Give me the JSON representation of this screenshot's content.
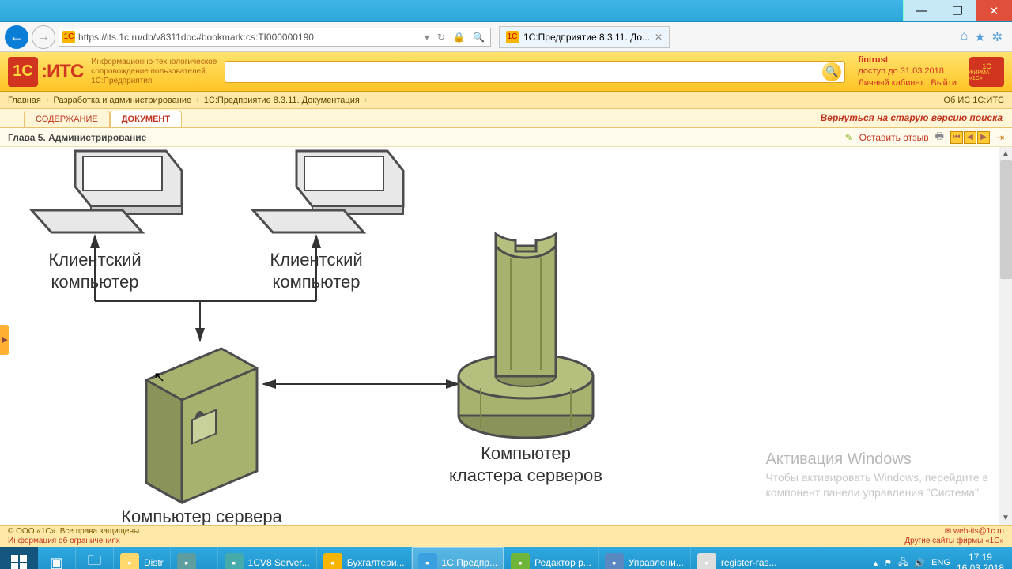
{
  "browser": {
    "url": "https://its.1c.ru/db/v8311doc#bookmark:cs:TI000000190",
    "tab_title": "1С:Предприятие 8.3.11. До...",
    "home_icon": "⌂",
    "star_icon": "★",
    "gear_icon": "✲"
  },
  "site": {
    "logo_main": "1С",
    "logo_sub": "ИТС",
    "tagline1": "Информационно-технологическое",
    "tagline2": "сопровождение пользователей",
    "tagline3": "1С:Предприятия",
    "account_user": "fintrust",
    "account_until": "доступ до 31.03.2018",
    "account_link1": "Личный кабинет",
    "account_link2": "Выйти"
  },
  "breadcrumb": {
    "items": [
      "Главная",
      "Разработка и администрирование",
      "1С:Предприятие 8.3.11. Документация"
    ],
    "right": "Об ИС 1С:ИТС"
  },
  "tabs": {
    "t1": "СОДЕРЖАНИЕ",
    "t2": "ДОКУМЕНТ",
    "backlink": "Вернуться на старую версию поиска"
  },
  "doc": {
    "title": "Глава 5. Администрирование",
    "feedback": "Оставить отзыв"
  },
  "diagram": {
    "client1": "Клиентский",
    "client1b": "компьютер",
    "client2": "Клиентский",
    "client2b": "компьютер",
    "server": "Компьютер сервера",
    "cluster1": "Компьютер",
    "cluster2": "кластера серверов",
    "colors": {
      "pc_fill": "#e8e8e8",
      "pc_stroke": "#4d4d4d",
      "server_fill": "#a6b26d",
      "server_dark": "#7f8a4a",
      "server_stroke": "#4d4d4d",
      "cluster_fill": "#a6b26d",
      "cluster_dark": "#8a945a"
    }
  },
  "watermark": {
    "title": "Активация Windows",
    "line": "Чтобы активировать Windows, перейдите в",
    "line2": "компонент панели управления \"Система\"."
  },
  "footer": {
    "copyright": "© ООО «1С». Все права защищены",
    "restrict": "Информация об ограничениях",
    "email": "web-its@1c.ru",
    "other": "Другие сайты фирмы «1С»"
  },
  "taskbar": {
    "items": [
      {
        "label": "Distr",
        "color": "#ffd76a"
      },
      {
        "label": "",
        "color": "#5f9ea0"
      },
      {
        "label": "1CV8 Server...",
        "color": "#4aa"
      },
      {
        "label": "Бухгалтери...",
        "color": "#f7b500"
      },
      {
        "label": "1С:Предпр...",
        "color": "#3aa0e0"
      },
      {
        "label": "Редактор р...",
        "color": "#6fb53a"
      },
      {
        "label": "Управлени...",
        "color": "#5a88c0"
      },
      {
        "label": "register-ras...",
        "color": "#ddd"
      }
    ],
    "tray_lang": "ENG",
    "time": "17:19",
    "date": "16.03.2018"
  }
}
